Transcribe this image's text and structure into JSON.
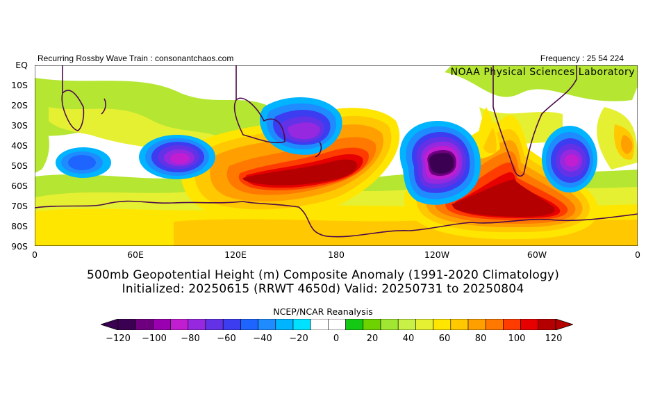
{
  "header": {
    "left_text": "Recurring Rossby Wave Train : consonantchaos.com",
    "right_text": "Frequency : 25 54 224"
  },
  "watermark": "NOAA Physical Sciences Laboratory",
  "map": {
    "type": "contour-map",
    "projection": "equirectangular",
    "lon_range": [
      0,
      360
    ],
    "lat_range": [
      -90,
      0
    ],
    "y_ticks": [
      "EQ",
      "10S",
      "20S",
      "30S",
      "40S",
      "50S",
      "60S",
      "70S",
      "80S",
      "90S"
    ],
    "x_ticks": [
      "0",
      "60E",
      "120E",
      "180",
      "120W",
      "60W",
      "0"
    ],
    "anomaly_centers": [
      {
        "kind": "low",
        "lon": 28,
        "lat": -47,
        "value": -60
      },
      {
        "kind": "low",
        "lon": 82,
        "lat": -45,
        "value": -100
      },
      {
        "kind": "low",
        "lon": 160,
        "lat": -38,
        "value": -110
      },
      {
        "kind": "low",
        "lon": 232,
        "lat": -52,
        "value": -125
      },
      {
        "kind": "low",
        "lon": 320,
        "lat": -44,
        "value": -95
      },
      {
        "kind": "high",
        "lon": 162,
        "lat": -62,
        "value": 110
      },
      {
        "kind": "high",
        "lon": 278,
        "lat": -72,
        "value": 115
      },
      {
        "kind": "high",
        "lon": 350,
        "lat": -42,
        "value": 70
      }
    ]
  },
  "title": {
    "line1": "500mb Geopotential Height (m) Composite Anomaly (1991-2020 Climatology)",
    "line2": "Initialized: 20250615 (RRWT 4650d) Valid: 20250731 to 20250804"
  },
  "colorbar": {
    "label": "NCEP/NCAR Reanalysis",
    "tick_labels": [
      "-120",
      "-100",
      "-80",
      "-60",
      "-40",
      "-20",
      "0",
      "20",
      "40",
      "60",
      "80",
      "100",
      "120"
    ],
    "colors": [
      "#3c0052",
      "#6e0080",
      "#9a00b0",
      "#c01ed0",
      "#9628e0",
      "#6432e6",
      "#3c3cf0",
      "#1e64ff",
      "#1e8cff",
      "#00b4ff",
      "#00e1ff",
      "#ffffff",
      "#ffffff",
      "#14c814",
      "#6ed200",
      "#a0e632",
      "#c8f046",
      "#e6f032",
      "#ffe600",
      "#ffc800",
      "#ffa000",
      "#ff7800",
      "#ff3c00",
      "#e60000",
      "#b40000"
    ]
  }
}
